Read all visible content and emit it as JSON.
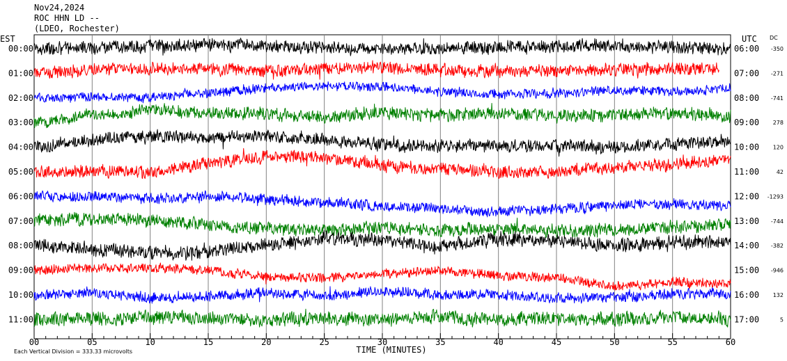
{
  "header": {
    "date": "Nov24,2024",
    "station": "ROC HHN LD --",
    "network": "(LDEO, Rochester)"
  },
  "labels": {
    "left_zone": "EST",
    "right_zone": "UTC",
    "dc_header": "DC",
    "footnote": "Each Vertical Division =  333.33 microvolts",
    "x_axis_title": "TIME (MINUTES)"
  },
  "chart_data": {
    "type": "line",
    "title": "",
    "xlabel": "TIME (MINUTES)",
    "ylabel": "",
    "xlim": [
      0,
      60
    ],
    "x_ticks": [
      "00",
      "05",
      "10",
      "15",
      "20",
      "25",
      "30",
      "35",
      "40",
      "45",
      "50",
      "55",
      "60"
    ],
    "grid": true,
    "series": [
      {
        "row": 0,
        "est": "00:00",
        "utc": "06:00",
        "dc": "-350",
        "color": "#000000",
        "amp": 0.6,
        "last_minute": 60,
        "trend": [
          0,
          0.1,
          0.2,
          0.3,
          0.2,
          0.1,
          0,
          0,
          0.1,
          0.2,
          0.2,
          0.1,
          0
        ]
      },
      {
        "row": 1,
        "est": "01:00",
        "utc": "07:00",
        "dc": "-271",
        "color": "#ff0000",
        "amp": 0.6,
        "last_minute": 59,
        "trend": [
          0,
          0.3,
          0.4,
          0.3,
          0.2,
          0.4,
          0.5,
          0.3,
          0.1,
          0.2,
          0.3,
          0.4,
          0.3
        ]
      },
      {
        "row": 2,
        "est": "02:00",
        "utc": "08:00",
        "dc": "-741",
        "color": "#0000ff",
        "amp": 0.45,
        "last_minute": 60,
        "trend": [
          0,
          0.1,
          0,
          0.4,
          0.8,
          1.0,
          0.9,
          0.5,
          0.3,
          0.4,
          0.6,
          0.5,
          0.8
        ]
      },
      {
        "row": 3,
        "est": "03:00",
        "utc": "09:00",
        "dc": "278",
        "color": "#008000",
        "amp": 0.6,
        "last_minute": 60,
        "trend": [
          0,
          0.6,
          1.0,
          0.8,
          0.7,
          0.4,
          0.8,
          0.6,
          0.7,
          0.5,
          0.6,
          0.8,
          0.5
        ]
      },
      {
        "row": 4,
        "est": "04:00",
        "utc": "10:00",
        "dc": "120",
        "color": "#000000",
        "amp": 0.6,
        "last_minute": 60,
        "trend": [
          0,
          0.6,
          0.9,
          0.8,
          0.9,
          0.6,
          0.2,
          0.1,
          0.1,
          0.1,
          0,
          0.3,
          0.5
        ]
      },
      {
        "row": 5,
        "est": "05:00",
        "utc": "11:00",
        "dc": "42",
        "color": "#ff0000",
        "amp": 0.6,
        "last_minute": 60,
        "trend": [
          0,
          0,
          0,
          0.7,
          1.2,
          1.2,
          0.5,
          0.2,
          0,
          0,
          0.4,
          0.6,
          1.0
        ]
      },
      {
        "row": 6,
        "est": "06:00",
        "utc": "12:00",
        "dc": "-1293",
        "color": "#0000ff",
        "amp": 0.5,
        "last_minute": 60,
        "trend": [
          0,
          0,
          -0.2,
          0,
          -0.2,
          -0.5,
          -0.8,
          -1.0,
          -1.3,
          -1.0,
          -0.7,
          -0.6,
          -0.8
        ]
      },
      {
        "row": 7,
        "est": "07:00",
        "utc": "13:00",
        "dc": "-744",
        "color": "#008000",
        "amp": 0.6,
        "last_minute": 60,
        "trend": [
          0,
          0.2,
          0.1,
          -0.3,
          -0.6,
          -0.7,
          -0.5,
          -0.8,
          -0.6,
          -0.8,
          -0.7,
          -0.5,
          -0.3
        ]
      },
      {
        "row": 8,
        "est": "08:00",
        "utc": "14:00",
        "dc": "-382",
        "color": "#000000",
        "amp": 0.65,
        "last_minute": 60,
        "trend": [
          0,
          -0.3,
          -0.6,
          -0.5,
          0,
          0.6,
          0.4,
          -0.1,
          0.6,
          0.4,
          0,
          0.3,
          0.3
        ]
      },
      {
        "row": 9,
        "est": "09:00",
        "utc": "15:00",
        "dc": "-946",
        "color": "#ff0000",
        "amp": 0.45,
        "last_minute": 60,
        "trend": [
          0,
          0.2,
          0.2,
          0,
          -0.5,
          -0.6,
          -0.3,
          0,
          -0.4,
          -0.6,
          -1.3,
          -1.0,
          -1.1
        ]
      },
      {
        "row": 10,
        "est": "10:00",
        "utc": "16:00",
        "dc": "132",
        "color": "#0000ff",
        "amp": 0.5,
        "last_minute": 60,
        "trend": [
          0,
          0.2,
          -0.2,
          -0.1,
          0.2,
          -0.1,
          0.3,
          0,
          0,
          -0.3,
          -0.2,
          0.1,
          0.1
        ]
      },
      {
        "row": 11,
        "est": "11:00",
        "utc": "17:00",
        "dc": "5",
        "color": "#008000",
        "amp": 0.65,
        "last_minute": 60,
        "trend": [
          0,
          0.1,
          0.2,
          0.1,
          0,
          0.1,
          0,
          0.2,
          0,
          0.1,
          0,
          0.2,
          0
        ]
      }
    ]
  }
}
